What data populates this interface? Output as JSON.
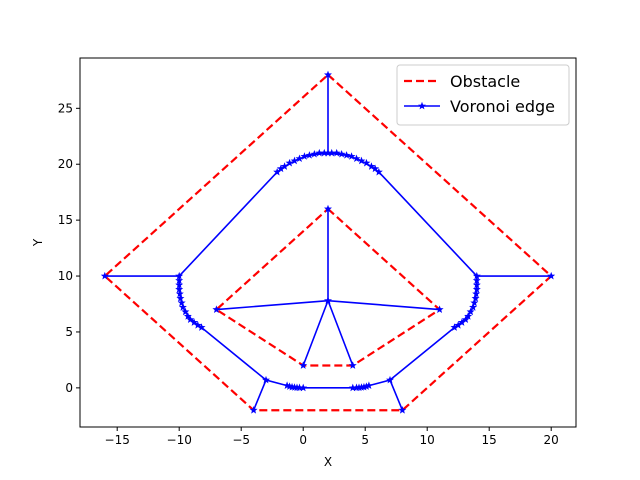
{
  "chart_data": {
    "type": "line",
    "title": "",
    "xlabel": "X",
    "ylabel": "Y",
    "xlim": [
      -18,
      22
    ],
    "ylim": [
      -3.5,
      29.5
    ],
    "xticks": [
      -15,
      -10,
      -5,
      0,
      5,
      10,
      15,
      20
    ],
    "yticks": [
      0,
      5,
      10,
      15,
      20,
      25
    ],
    "grid": false,
    "legend_position": "top-right",
    "series": [
      {
        "name": "Obstacle",
        "color": "#ff0000",
        "style": "dashed",
        "paths": [
          [
            [
              2,
              28
            ],
            [
              20,
              10
            ],
            [
              8,
              -2
            ],
            [
              -4,
              -2
            ],
            [
              -16,
              10
            ],
            [
              2,
              28
            ]
          ],
          [
            [
              2,
              16
            ],
            [
              11,
              7
            ],
            [
              4,
              2
            ],
            [
              0,
              2
            ],
            [
              -7,
              7
            ],
            [
              2,
              16
            ]
          ]
        ]
      },
      {
        "name": "Voronoi edge",
        "color": "#0000ff",
        "marker": "star",
        "segments": [
          [
            [
              2,
              28
            ],
            [
              2,
              21
            ]
          ],
          [
            [
              -10,
              10
            ],
            [
              -16,
              10
            ]
          ],
          [
            [
              14,
              10
            ],
            [
              20,
              10
            ]
          ],
          [
            [
              -3,
              0.7
            ],
            [
              -4,
              -2
            ]
          ],
          [
            [
              7,
              0.7
            ],
            [
              8,
              -2
            ]
          ],
          [
            [
              2,
              16
            ],
            [
              2,
              7.8
            ]
          ],
          [
            [
              2,
              7.8
            ],
            [
              -7,
              7
            ]
          ],
          [
            [
              2,
              7.8
            ],
            [
              11,
              7
            ]
          ],
          [
            [
              2,
              7.8
            ],
            [
              0,
              2
            ]
          ],
          [
            [
              2,
              7.8
            ],
            [
              4,
              2
            ]
          ],
          [
            [
              -1.3,
              0.2
            ],
            [
              -3,
              0.7
            ],
            [
              -8.2,
              5.4
            ]
          ],
          [
            [
              5.3,
              0.2
            ],
            [
              7,
              0.7
            ],
            [
              12.2,
              5.4
            ]
          ],
          [
            [
              0,
              0
            ],
            [
              4,
              0
            ]
          ],
          [
            [
              -10,
              10
            ],
            [
              -2.1,
              19.3
            ]
          ],
          [
            [
              14,
              10
            ],
            [
              6.1,
              19.3
            ]
          ],
          [
            [
              -2.1,
              19.3
            ],
            [
              -1.5,
              19.8
            ],
            [
              -0.5,
              20.4
            ],
            [
              0.5,
              20.8
            ],
            [
              2,
              21
            ],
            [
              3.5,
              20.8
            ],
            [
              4.5,
              20.4
            ],
            [
              5.5,
              19.8
            ],
            [
              6.1,
              19.3
            ]
          ],
          [
            [
              -10,
              10
            ],
            [
              -10,
              9
            ],
            [
              -9.9,
              8
            ],
            [
              -9.6,
              7
            ],
            [
              -9.2,
              6.3
            ],
            [
              -8.7,
              5.8
            ],
            [
              -8.2,
              5.4
            ]
          ],
          [
            [
              14,
              10
            ],
            [
              14,
              9
            ],
            [
              13.9,
              8
            ],
            [
              13.6,
              7
            ],
            [
              13.2,
              6.3
            ],
            [
              12.7,
              5.8
            ],
            [
              12.2,
              5.4
            ]
          ],
          [
            [
              -1.3,
              0.2
            ],
            [
              -1,
              0.1
            ],
            [
              -0.5,
              0.02
            ],
            [
              0,
              0
            ]
          ],
          [
            [
              5.3,
              0.2
            ],
            [
              5,
              0.1
            ],
            [
              4.5,
              0.02
            ],
            [
              4,
              0
            ]
          ]
        ],
        "marker_points": [
          [
            2,
            28
          ],
          [
            2,
            21
          ],
          [
            -16,
            10
          ],
          [
            20,
            10
          ],
          [
            -10,
            10
          ],
          [
            14,
            10
          ],
          [
            -4,
            -2
          ],
          [
            8,
            -2
          ],
          [
            -3,
            0.7
          ],
          [
            7,
            0.7
          ],
          [
            2,
            16
          ],
          [
            2,
            7.8
          ],
          [
            -7,
            7
          ],
          [
            11,
            7
          ],
          [
            0,
            2
          ],
          [
            4,
            2
          ],
          [
            0,
            0
          ],
          [
            4,
            0
          ],
          [
            -2.1,
            19.3
          ],
          [
            -1.8,
            19.6
          ],
          [
            -1.5,
            19.8
          ],
          [
            -1.1,
            20.1
          ],
          [
            -0.7,
            20.3
          ],
          [
            -0.3,
            20.5
          ],
          [
            0.1,
            20.7
          ],
          [
            0.5,
            20.8
          ],
          [
            0.9,
            20.9
          ],
          [
            1.3,
            21
          ],
          [
            1.7,
            21
          ],
          [
            2.3,
            21
          ],
          [
            2.7,
            21
          ],
          [
            3.1,
            20.9
          ],
          [
            3.5,
            20.8
          ],
          [
            3.9,
            20.7
          ],
          [
            4.3,
            20.5
          ],
          [
            4.7,
            20.3
          ],
          [
            5.1,
            20.1
          ],
          [
            5.5,
            19.8
          ],
          [
            5.8,
            19.6
          ],
          [
            6.1,
            19.3
          ],
          [
            -10,
            9.6
          ],
          [
            -10,
            9.2
          ],
          [
            -10,
            8.8
          ],
          [
            -9.95,
            8.4
          ],
          [
            -9.9,
            8
          ],
          [
            -9.8,
            7.6
          ],
          [
            -9.7,
            7.2
          ],
          [
            -9.5,
            6.8
          ],
          [
            -9.3,
            6.4
          ],
          [
            -9.1,
            6.1
          ],
          [
            -8.8,
            5.85
          ],
          [
            -8.5,
            5.6
          ],
          [
            -8.2,
            5.4
          ],
          [
            14,
            9.6
          ],
          [
            14,
            9.2
          ],
          [
            14,
            8.8
          ],
          [
            13.95,
            8.4
          ],
          [
            13.9,
            8
          ],
          [
            13.8,
            7.6
          ],
          [
            13.7,
            7.2
          ],
          [
            13.5,
            6.8
          ],
          [
            13.3,
            6.4
          ],
          [
            13.1,
            6.1
          ],
          [
            12.8,
            5.85
          ],
          [
            12.5,
            5.6
          ],
          [
            12.2,
            5.4
          ],
          [
            -1.3,
            0.2
          ],
          [
            -1.1,
            0.12
          ],
          [
            -0.9,
            0.07
          ],
          [
            -0.7,
            0.04
          ],
          [
            -0.5,
            0.02
          ],
          [
            -0.3,
            0.01
          ],
          [
            5.3,
            0.2
          ],
          [
            5.1,
            0.12
          ],
          [
            4.9,
            0.07
          ],
          [
            4.7,
            0.04
          ],
          [
            4.5,
            0.02
          ],
          [
            4.3,
            0.01
          ]
        ]
      }
    ]
  }
}
